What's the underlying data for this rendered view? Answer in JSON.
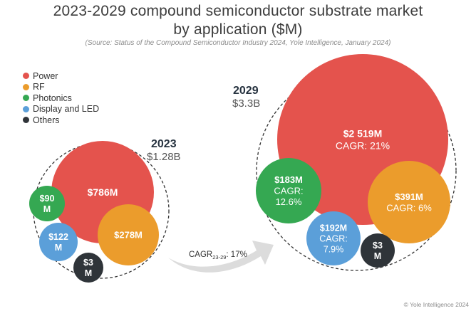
{
  "title_line1": "2023-2029 compound semiconductor substrate market",
  "title_line2": "by application ($M)",
  "source": "(Source: Status of the Compound Semiconductor Industry 2024, Yole Intelligence, January 2024)",
  "legend": [
    {
      "label": "Power",
      "color": "#e4534d"
    },
    {
      "label": "RF",
      "color": "#eb9c2c"
    },
    {
      "label": "Photonics",
      "color": "#35a852"
    },
    {
      "label": "Display and LED",
      "color": "#5b9fd9"
    },
    {
      "label": "Others",
      "color": "#2f3439"
    }
  ],
  "cagr_arrow": {
    "label": "CAGR",
    "sub": "23-29",
    "value": ": 17%"
  },
  "copyright": "© Yole Intelligence 2024",
  "chart_data": {
    "type": "bubble",
    "groups": [
      {
        "year": "2023",
        "total_label": "$1.28B",
        "bubbles": [
          {
            "segment": "Power",
            "value": 786,
            "lines": [
              "$786M"
            ]
          },
          {
            "segment": "RF",
            "value": 278,
            "lines": [
              "$278M"
            ]
          },
          {
            "segment": "Photonics",
            "value": 90,
            "lines": [
              "$90",
              "M"
            ]
          },
          {
            "segment": "Display and LED",
            "value": 122,
            "lines": [
              "$122",
              "M"
            ]
          },
          {
            "segment": "Others",
            "value": 3,
            "lines": [
              "$3",
              "M"
            ]
          }
        ]
      },
      {
        "year": "2029",
        "total_label": "$3.3B",
        "bubbles": [
          {
            "segment": "Power",
            "value": 2519,
            "cagr": "21%",
            "lines": [
              "$2 519M",
              "CAGR: 21%"
            ]
          },
          {
            "segment": "RF",
            "value": 391,
            "cagr": "6%",
            "lines": [
              "$391M",
              "CAGR: 6%"
            ]
          },
          {
            "segment": "Photonics",
            "value": 183,
            "cagr": "12.6%",
            "lines": [
              "$183M",
              "CAGR:",
              "12.6%"
            ]
          },
          {
            "segment": "Display and LED",
            "value": 192,
            "cagr": "7.9%",
            "lines": [
              "$192M",
              "CAGR:",
              "7.9%"
            ]
          },
          {
            "segment": "Others",
            "value": 3,
            "lines": [
              "$3",
              "M"
            ]
          }
        ]
      }
    ]
  }
}
